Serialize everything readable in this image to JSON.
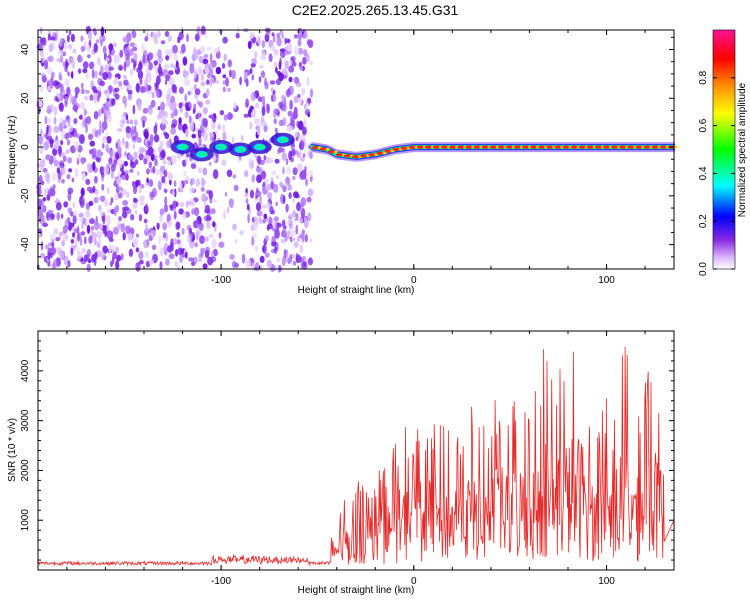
{
  "title": "C2E2.2025.265.13.45.G31",
  "spectrogram": {
    "type": "heatmap",
    "xlabel": "Height of straight line (km)",
    "ylabel": "Frequency (Hz)",
    "xlim": [
      -195,
      135
    ],
    "ylim": [
      -50,
      48
    ],
    "xticks": [
      -100,
      0,
      100
    ],
    "yticks": [
      -40,
      -20,
      0,
      20,
      40
    ],
    "noise_region_x": [
      -195,
      -53
    ],
    "signal_line": [
      [
        -53,
        0
      ],
      [
        -45,
        -1
      ],
      [
        -40,
        -3
      ],
      [
        -30,
        -4
      ],
      [
        -20,
        -3
      ],
      [
        -10,
        -1
      ],
      [
        0,
        0
      ],
      [
        20,
        0
      ],
      [
        60,
        0
      ],
      [
        100,
        0
      ],
      [
        135,
        0
      ]
    ],
    "noisy_blobs": [
      [
        -120,
        0
      ],
      [
        -110,
        -3
      ],
      [
        -100,
        0
      ],
      [
        -90,
        -1
      ],
      [
        -80,
        0
      ],
      [
        -68,
        3
      ]
    ]
  },
  "colorbar": {
    "label": "Normalized spectral amplitude",
    "range": [
      0.0,
      1.0
    ],
    "ticks": [
      "0.0",
      "0.2",
      "0.4",
      "0.6",
      "0.8"
    ],
    "colors": [
      "#ffffff",
      "#d9b3ff",
      "#8a2be2",
      "#0000ff",
      "#00ffff",
      "#00ff00",
      "#ffff00",
      "#ff8000",
      "#ff0000",
      "#ff1493"
    ]
  },
  "snr": {
    "type": "line",
    "xlabel": "Height of straight line (km)",
    "ylabel": "SNR (10 * v/v)",
    "xlim": [
      -195,
      135
    ],
    "ylim": [
      0,
      4800
    ],
    "xticks": [
      -100,
      0,
      100
    ],
    "yticks": [
      1000,
      2000,
      3000,
      4000
    ],
    "line_color": "#e82828",
    "baseline_region": {
      "x": [
        -195,
        -43
      ],
      "level": 100
    },
    "peaks": [
      [
        -43,
        1200
      ],
      [
        -35,
        1600
      ],
      [
        -28,
        1800
      ],
      [
        -20,
        1950
      ],
      [
        -12,
        2350
      ],
      [
        -5,
        2900
      ],
      [
        5,
        3100
      ],
      [
        12,
        2900
      ],
      [
        20,
        2950
      ],
      [
        30,
        3300
      ],
      [
        38,
        2900
      ],
      [
        43,
        3550
      ],
      [
        50,
        3400
      ],
      [
        57,
        3600
      ],
      [
        62,
        3500
      ],
      [
        67,
        4600
      ],
      [
        72,
        4000
      ],
      [
        80,
        4500
      ],
      [
        88,
        4600
      ],
      [
        94,
        2800
      ],
      [
        100,
        3600
      ],
      [
        103,
        3100
      ],
      [
        110,
        4750
      ],
      [
        116,
        3100
      ],
      [
        122,
        4300
      ],
      [
        125,
        4000
      ],
      [
        130,
        3350
      ]
    ]
  }
}
